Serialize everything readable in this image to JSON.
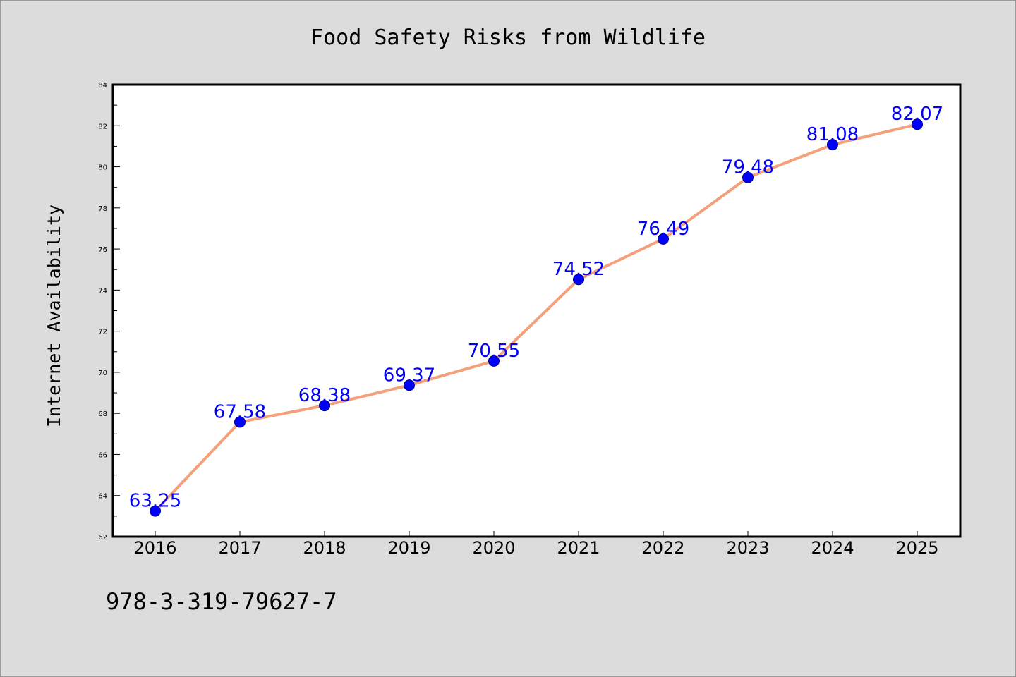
{
  "chart_data": {
    "type": "line",
    "title": "Food Safety Risks from Wildlife",
    "xlabel": "",
    "ylabel": "Internet Availability",
    "categories": [
      "2016",
      "2017",
      "2018",
      "2019",
      "2020",
      "2021",
      "2022",
      "2023",
      "2024",
      "2025"
    ],
    "series": [
      {
        "values": [
          63.25,
          67.58,
          68.38,
          69.37,
          70.55,
          74.52,
          76.49,
          79.48,
          81.08,
          82.07
        ],
        "data_labels": [
          "63.25",
          "67.58",
          "68.38",
          "69.37",
          "70.55",
          "74.52",
          "76.49",
          "79.48",
          "81.08",
          "82.07"
        ]
      }
    ],
    "ylim": [
      62,
      84
    ],
    "yticks": [
      "62",
      "64",
      "66",
      "68",
      "70",
      "72",
      "74",
      "76",
      "78",
      "80",
      "82",
      "84"
    ],
    "grid": false,
    "legend": "none",
    "colors": {
      "line": "#f4a07a",
      "marker": "#0000ff",
      "marker_edge": "#000080",
      "data_label": "#0000ff",
      "plot_background": "#ffffff",
      "figure_background": "#dcdcdc"
    }
  },
  "annotation": {
    "isbn": "978-3-319-79627-7"
  }
}
